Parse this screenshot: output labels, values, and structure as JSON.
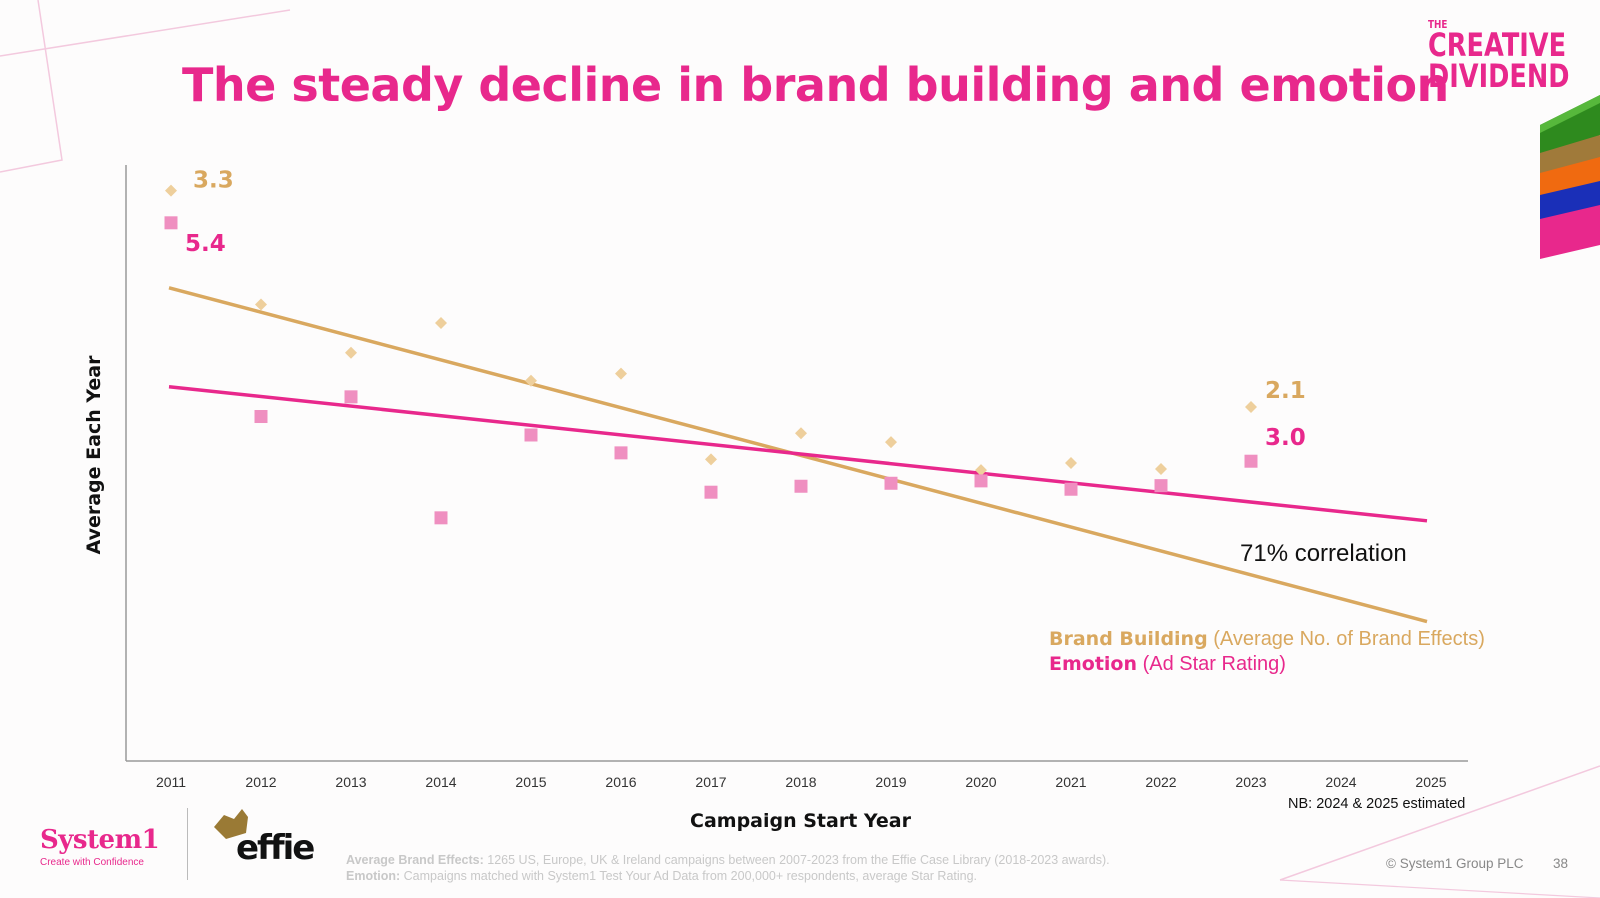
{
  "header": {
    "title": "The steady decline in brand building and emotion",
    "logo_top": "THE",
    "logo_line1": "CREATIVE",
    "logo_line2": "DIVIDEND"
  },
  "chart_data": {
    "type": "scatter",
    "title": "The steady decline in brand building and emotion",
    "xlabel": "Campaign Start Year",
    "ylabel": "Average Each Year",
    "categories": [
      "2011",
      "2012",
      "2013",
      "2014",
      "2015",
      "2016",
      "2017",
      "2018",
      "2019",
      "2020",
      "2021",
      "2022",
      "2023",
      "2024",
      "2025"
    ],
    "ylim": [
      0,
      1
    ],
    "series": [
      {
        "name": "Brand Building",
        "description": "Average No. of Brand Effects",
        "color": "#d9a85f",
        "marker": "diamond",
        "values": [
          0.957,
          0.766,
          0.685,
          0.735,
          0.638,
          0.65,
          0.506,
          0.55,
          0.535,
          0.488,
          0.5,
          0.49,
          0.594
        ],
        "trend": [
          0.794,
          0.234
        ],
        "start_label": "3.3",
        "end_label": "2.1"
      },
      {
        "name": "Emotion",
        "description": "Ad Star Rating",
        "color": "#e8288c",
        "marker": "square",
        "values": [
          0.903,
          0.578,
          0.611,
          0.408,
          0.547,
          0.517,
          0.451,
          0.461,
          0.466,
          0.47,
          0.456,
          0.462,
          0.503
        ],
        "trend": [
          0.628,
          0.403
        ],
        "start_label": "5.4",
        "end_label": "3.0"
      }
    ],
    "annotation": "71% correlation",
    "note": "NB: 2024 & 2025 estimated"
  },
  "legend": {
    "brand_label": "Brand Building",
    "brand_desc": "(Average No. of Brand Effects)",
    "emotion_label": "Emotion",
    "emotion_desc": "(Ad Star Rating)"
  },
  "footer": {
    "logo": "System1",
    "tagline": "Create with Confidence",
    "partner": "effie",
    "source_label1": "Average Brand Effects:",
    "source_text1": "1265 US, Europe, UK & Ireland campaigns between 2007-2023 from the Effie Case Library (2018-2023 awards).",
    "source_label2": "Emotion:",
    "source_text2": "Campaigns matched with System1 Test Your Ad Data from 200,000+ respondents, average Star Rating.",
    "copyright": "© System1 Group PLC",
    "page_number": "38"
  },
  "colors": {
    "accent": "#e8288c",
    "gold": "#d9a85f",
    "pink_marker": "#ef8fc0",
    "gold_marker": "#eecf9c"
  }
}
